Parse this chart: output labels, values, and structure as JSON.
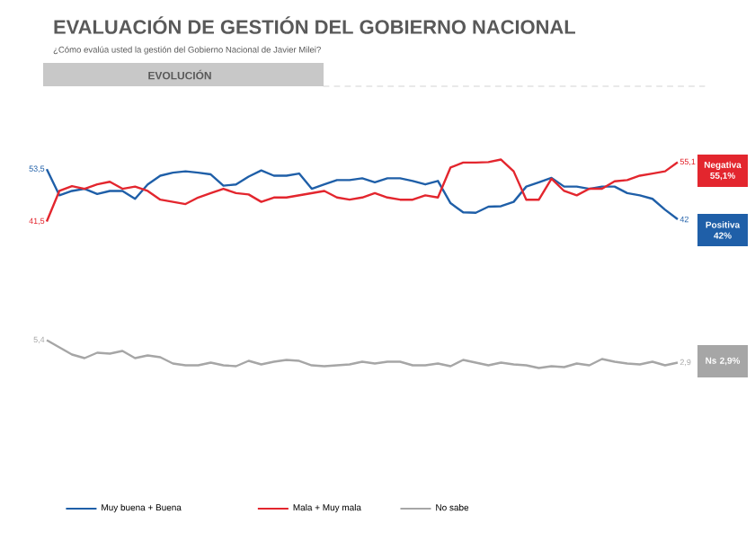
{
  "chart_data": [
    {
      "type": "line",
      "title": "EVALUACIÓN DE GESTIÓN DEL GOBIERNO NACIONAL",
      "subtitle": "¿Cómo evalúa usted la gestión del Gobierno Nacional de Javier Milei?",
      "annotations": [
        "EVOLUCIÓN",
        "Negativa 55,1%",
        "Positiva 42%"
      ],
      "categories": [
        null,
        null,
        null,
        null,
        null,
        null,
        null,
        null,
        null,
        null,
        null,
        null,
        null,
        null,
        null,
        null,
        null,
        null,
        null,
        null,
        null,
        null,
        null,
        null,
        null,
        null,
        null,
        null,
        null,
        null,
        null,
        null,
        null,
        null,
        null,
        null,
        null,
        null,
        null,
        null,
        null,
        null,
        null,
        null,
        null,
        null,
        null,
        null,
        null,
        null,
        null
      ],
      "legend": "bottom",
      "series": [
        {
          "name": "Muy buena + Buena",
          "color": "#1f5fa8",
          "values": [
            53.5,
            47.5,
            48.5,
            49,
            47.8,
            48.5,
            48.5,
            46.7,
            50,
            52,
            52.7,
            53,
            52.7,
            52.3,
            49.7,
            50,
            51.8,
            53.2,
            52,
            52,
            52.5,
            49,
            50,
            51,
            51,
            51.4,
            50.5,
            51.4,
            51.4,
            50.8,
            50,
            50.8,
            45.7,
            43.6,
            43.5,
            44.9,
            45,
            46,
            49.5,
            50.5,
            51.5,
            49.5,
            49.5,
            49,
            49.5,
            49.5,
            48,
            47.5,
            46.7,
            44.2,
            42
          ],
          "value_labels": [
            "53,5",
            null,
            null,
            null,
            null,
            null,
            null,
            null,
            null,
            null,
            null,
            null,
            null,
            null,
            null,
            null,
            null,
            null,
            null,
            null,
            null,
            null,
            null,
            null,
            null,
            null,
            null,
            null,
            null,
            null,
            null,
            null,
            null,
            null,
            null,
            null,
            null,
            null,
            null,
            null,
            null,
            null,
            null,
            null,
            null,
            null,
            null,
            null,
            null,
            null,
            "42"
          ]
        },
        {
          "name": "Mala + Muy mala",
          "color": "#e3262e",
          "values": [
            41.5,
            48.5,
            49.6,
            49,
            50,
            50.6,
            49,
            49.5,
            48.5,
            46.5,
            46,
            45.5,
            47,
            48,
            49,
            48,
            47.7,
            46,
            47,
            47,
            47.5,
            48,
            48.5,
            47,
            46.5,
            47,
            48,
            47,
            46.5,
            46.5,
            47.5,
            47,
            53.9,
            55,
            55,
            55.1,
            55.7,
            53,
            46.5,
            46.5,
            51.3,
            48.5,
            47.5,
            49,
            49,
            50.7,
            51,
            52,
            52.5,
            53,
            55.1
          ],
          "value_labels": [
            "41,5",
            null,
            null,
            null,
            null,
            null,
            null,
            null,
            null,
            null,
            null,
            null,
            null,
            null,
            null,
            null,
            null,
            null,
            null,
            null,
            null,
            null,
            null,
            null,
            null,
            null,
            null,
            null,
            null,
            null,
            null,
            null,
            null,
            null,
            null,
            null,
            null,
            null,
            null,
            null,
            null,
            null,
            null,
            null,
            null,
            null,
            null,
            null,
            null,
            null,
            "55,1"
          ]
        }
      ]
    },
    {
      "type": "line",
      "annotations": [
        "Ns 2,9%"
      ],
      "categories": [
        null,
        null,
        null,
        null,
        null,
        null,
        null,
        null,
        null,
        null,
        null,
        null,
        null,
        null,
        null,
        null,
        null,
        null,
        null,
        null,
        null,
        null,
        null,
        null,
        null,
        null,
        null,
        null,
        null,
        null,
        null,
        null,
        null,
        null,
        null,
        null,
        null,
        null,
        null,
        null,
        null,
        null,
        null,
        null,
        null,
        null,
        null,
        null,
        null,
        null,
        null
      ],
      "legend": "bottom",
      "series": [
        {
          "name": "No sabe",
          "color": "#a6a6a6",
          "values": [
            5.4,
            4.6,
            3.8,
            3.4,
            4.0,
            3.9,
            4.2,
            3.4,
            3.7,
            3.5,
            2.8,
            2.6,
            2.6,
            2.9,
            2.6,
            2.5,
            3.1,
            2.7,
            3.0,
            3.2,
            3.1,
            2.6,
            2.5,
            2.6,
            2.7,
            3.0,
            2.8,
            3.0,
            3.0,
            2.6,
            2.6,
            2.8,
            2.5,
            3.2,
            2.9,
            2.6,
            2.9,
            2.7,
            2.6,
            2.3,
            2.5,
            2.4,
            2.8,
            2.6,
            3.3,
            3.0,
            2.8,
            2.7,
            3.0,
            2.6,
            2.9
          ],
          "value_labels": [
            "5,4",
            null,
            null,
            null,
            null,
            null,
            null,
            null,
            null,
            null,
            null,
            null,
            null,
            null,
            null,
            null,
            null,
            null,
            null,
            null,
            null,
            null,
            null,
            null,
            null,
            null,
            null,
            null,
            null,
            null,
            null,
            null,
            null,
            null,
            null,
            null,
            null,
            null,
            null,
            null,
            null,
            null,
            null,
            null,
            null,
            null,
            null,
            null,
            null,
            null,
            "2,9"
          ]
        }
      ]
    }
  ]
}
